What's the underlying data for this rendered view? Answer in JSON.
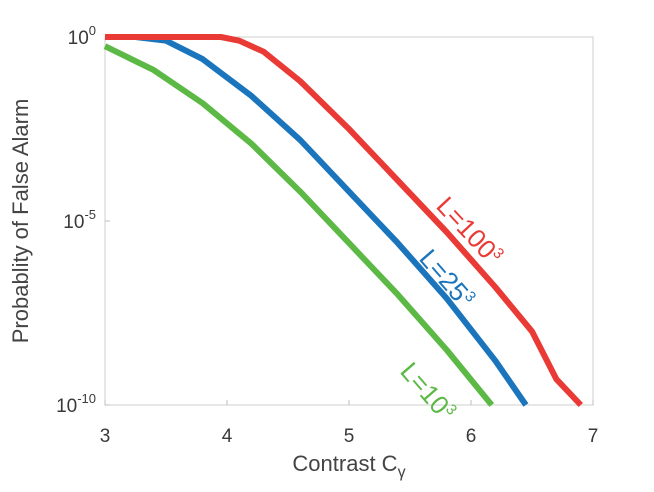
{
  "chart_data": {
    "type": "line",
    "title": "",
    "xlabel": "Contrast C",
    "xlabel_subscript": "γ",
    "ylabel": "Probablity of False Alarm",
    "xlim": [
      3,
      7
    ],
    "ylim": [
      1e-10,
      1
    ],
    "yscale": "log",
    "grid": false,
    "x_ticks": [
      {
        "value": 3,
        "label": "3"
      },
      {
        "value": 4,
        "label": "4"
      },
      {
        "value": 5,
        "label": "5"
      },
      {
        "value": 6,
        "label": "6"
      },
      {
        "value": 7,
        "label": "7"
      }
    ],
    "y_ticks": [
      {
        "exp": 0,
        "base": "10",
        "sup": "0"
      },
      {
        "exp": -5,
        "base": "10",
        "sup": "-5"
      },
      {
        "exp": -10,
        "base": "10",
        "sup": "-10"
      }
    ],
    "series": [
      {
        "name": "L=10",
        "name_sup": "3",
        "color": "#5cb945",
        "points": [
          [
            3.0,
            -0.25
          ],
          [
            3.4,
            -0.9
          ],
          [
            3.8,
            -1.8
          ],
          [
            4.2,
            -2.9
          ],
          [
            4.6,
            -4.2
          ],
          [
            5.0,
            -5.6
          ],
          [
            5.4,
            -7.0
          ],
          [
            5.8,
            -8.5
          ],
          [
            6.17,
            -10.0
          ]
        ]
      },
      {
        "name": "L=25",
        "name_sup": "3",
        "color": "#1a75bc",
        "points": [
          [
            3.0,
            0.0
          ],
          [
            3.25,
            0.0
          ],
          [
            3.5,
            -0.1
          ],
          [
            3.8,
            -0.6
          ],
          [
            4.2,
            -1.6
          ],
          [
            4.6,
            -2.8
          ],
          [
            5.0,
            -4.2
          ],
          [
            5.4,
            -5.6
          ],
          [
            5.8,
            -7.1
          ],
          [
            6.2,
            -8.8
          ],
          [
            6.45,
            -10.0
          ]
        ]
      },
      {
        "name": "L=100",
        "name_sup": "3",
        "color": "#ea3a35",
        "points": [
          [
            3.0,
            0.0
          ],
          [
            3.5,
            0.0
          ],
          [
            3.95,
            0.0
          ],
          [
            4.1,
            -0.1
          ],
          [
            4.3,
            -0.4
          ],
          [
            4.6,
            -1.2
          ],
          [
            5.0,
            -2.5
          ],
          [
            5.4,
            -3.9
          ],
          [
            5.8,
            -5.3
          ],
          [
            6.2,
            -6.8
          ],
          [
            6.5,
            -8.0
          ],
          [
            6.7,
            -9.3
          ],
          [
            6.9,
            -10.0
          ]
        ]
      }
    ]
  }
}
